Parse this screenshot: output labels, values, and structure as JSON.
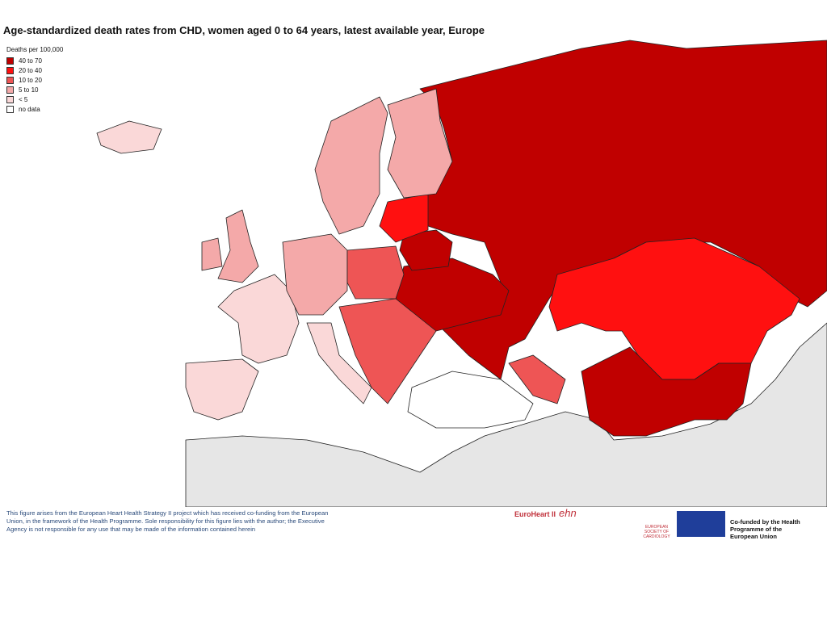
{
  "title": "Age-standardized death rates from CHD, women aged 0 to 64 years, latest available year, Europe",
  "legend": {
    "title": "Deaths per 100,000",
    "items": [
      {
        "label": "40 to 70",
        "color": "#c00000"
      },
      {
        "label": "20 to 40",
        "color": "#ff1010"
      },
      {
        "label": "10 to 20",
        "color": "#ee5555"
      },
      {
        "label": "5 to 10",
        "color": "#f4a9a9"
      },
      {
        "label": "< 5",
        "color": "#fad8d8"
      },
      {
        "label": "no data",
        "color": "#ffffff"
      }
    ]
  },
  "footer": "This figure arises from the European Heart Health Strategy II project which has received co-funding from the European Union, in the framework of the Health Programme. Sole responsibility for this figure lies with the author; the Executive Agency is not responsible for any use that may be made of the information contained herein",
  "logos": {
    "euroheart": "EuroHeart II",
    "ehn": "ehn",
    "esc": "EUROPEAN SOCIETY OF CARDIOLOGY",
    "eu": "Co-funded by the Health Programme of the European Union"
  }
}
